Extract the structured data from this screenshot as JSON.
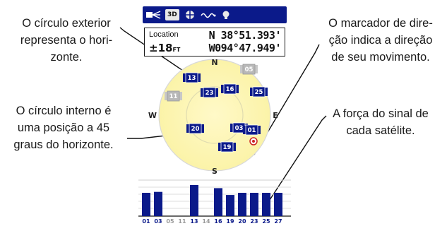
{
  "callouts": {
    "outer_circle": [
      "O círculo exterior",
      "representa o hori-",
      "zonte."
    ],
    "inner_circle": [
      "O círculo interno é",
      "uma posição a 45",
      "graus do horizonte."
    ],
    "direction": [
      "O marcador de dire-",
      "ção indica a direção",
      "de seu movimento."
    ],
    "signal": [
      "A força do sinal de",
      "cada satélite."
    ]
  },
  "toolbar": {
    "mode_label": "3D",
    "icons": [
      "backlight-icon",
      "3d-mode-icon",
      "target-icon",
      "wave-icon",
      "bulb-icon"
    ]
  },
  "location": {
    "label": "Location",
    "accuracy": "±18",
    "accuracy_unit": "FT",
    "lat": "N  38°51.393'",
    "lon": "W094°47.949'"
  },
  "sky": {
    "compass": {
      "n": "N",
      "s": "S",
      "e": "E",
      "w": "W"
    },
    "satellites": [
      {
        "id": "13",
        "status": "locked"
      },
      {
        "id": "05",
        "status": "searching"
      },
      {
        "id": "11",
        "status": "searching"
      },
      {
        "id": "23",
        "status": "locked"
      },
      {
        "id": "16",
        "status": "locked"
      },
      {
        "id": "25",
        "status": "locked"
      },
      {
        "id": "20",
        "status": "locked"
      },
      {
        "id": "03",
        "status": "locked"
      },
      {
        "id": "01",
        "status": "locked"
      },
      {
        "id": "19",
        "status": "locked"
      }
    ]
  },
  "signal": {
    "labels": [
      "01",
      "03",
      "05",
      "11",
      "13",
      "14",
      "16",
      "19",
      "20",
      "23",
      "25",
      "27"
    ],
    "strength": [
      0.75,
      0.78,
      0,
      0,
      1.0,
      0,
      0.9,
      0.68,
      0.75,
      0.75,
      0.75,
      0.75
    ],
    "color_locked": "#0b1a8a",
    "color_label_active": "#0b1a8a",
    "color_label_inactive": "#9a9a9a"
  }
}
